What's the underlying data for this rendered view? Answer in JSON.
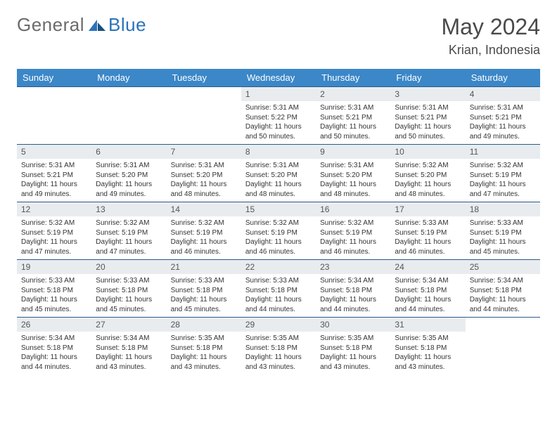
{
  "logo": {
    "general": "General",
    "blue": "Blue"
  },
  "title": "May 2024",
  "location": "Krian, Indonesia",
  "colors": {
    "header_bg": "#3b87c8",
    "header_text": "#ffffff",
    "daynum_bg": "#e9ecef",
    "row_border": "#2b5a8a",
    "logo_blue": "#2b72b9",
    "logo_gray": "#6b6b6b"
  },
  "weekdays": [
    "Sunday",
    "Monday",
    "Tuesday",
    "Wednesday",
    "Thursday",
    "Friday",
    "Saturday"
  ],
  "weeks": [
    [
      {
        "n": "",
        "sr": "",
        "ss": "",
        "dl": ""
      },
      {
        "n": "",
        "sr": "",
        "ss": "",
        "dl": ""
      },
      {
        "n": "",
        "sr": "",
        "ss": "",
        "dl": ""
      },
      {
        "n": "1",
        "sr": "Sunrise: 5:31 AM",
        "ss": "Sunset: 5:22 PM",
        "dl": "Daylight: 11 hours and 50 minutes."
      },
      {
        "n": "2",
        "sr": "Sunrise: 5:31 AM",
        "ss": "Sunset: 5:21 PM",
        "dl": "Daylight: 11 hours and 50 minutes."
      },
      {
        "n": "3",
        "sr": "Sunrise: 5:31 AM",
        "ss": "Sunset: 5:21 PM",
        "dl": "Daylight: 11 hours and 50 minutes."
      },
      {
        "n": "4",
        "sr": "Sunrise: 5:31 AM",
        "ss": "Sunset: 5:21 PM",
        "dl": "Daylight: 11 hours and 49 minutes."
      }
    ],
    [
      {
        "n": "5",
        "sr": "Sunrise: 5:31 AM",
        "ss": "Sunset: 5:21 PM",
        "dl": "Daylight: 11 hours and 49 minutes."
      },
      {
        "n": "6",
        "sr": "Sunrise: 5:31 AM",
        "ss": "Sunset: 5:20 PM",
        "dl": "Daylight: 11 hours and 49 minutes."
      },
      {
        "n": "7",
        "sr": "Sunrise: 5:31 AM",
        "ss": "Sunset: 5:20 PM",
        "dl": "Daylight: 11 hours and 48 minutes."
      },
      {
        "n": "8",
        "sr": "Sunrise: 5:31 AM",
        "ss": "Sunset: 5:20 PM",
        "dl": "Daylight: 11 hours and 48 minutes."
      },
      {
        "n": "9",
        "sr": "Sunrise: 5:31 AM",
        "ss": "Sunset: 5:20 PM",
        "dl": "Daylight: 11 hours and 48 minutes."
      },
      {
        "n": "10",
        "sr": "Sunrise: 5:32 AM",
        "ss": "Sunset: 5:20 PM",
        "dl": "Daylight: 11 hours and 48 minutes."
      },
      {
        "n": "11",
        "sr": "Sunrise: 5:32 AM",
        "ss": "Sunset: 5:19 PM",
        "dl": "Daylight: 11 hours and 47 minutes."
      }
    ],
    [
      {
        "n": "12",
        "sr": "Sunrise: 5:32 AM",
        "ss": "Sunset: 5:19 PM",
        "dl": "Daylight: 11 hours and 47 minutes."
      },
      {
        "n": "13",
        "sr": "Sunrise: 5:32 AM",
        "ss": "Sunset: 5:19 PM",
        "dl": "Daylight: 11 hours and 47 minutes."
      },
      {
        "n": "14",
        "sr": "Sunrise: 5:32 AM",
        "ss": "Sunset: 5:19 PM",
        "dl": "Daylight: 11 hours and 46 minutes."
      },
      {
        "n": "15",
        "sr": "Sunrise: 5:32 AM",
        "ss": "Sunset: 5:19 PM",
        "dl": "Daylight: 11 hours and 46 minutes."
      },
      {
        "n": "16",
        "sr": "Sunrise: 5:32 AM",
        "ss": "Sunset: 5:19 PM",
        "dl": "Daylight: 11 hours and 46 minutes."
      },
      {
        "n": "17",
        "sr": "Sunrise: 5:33 AM",
        "ss": "Sunset: 5:19 PM",
        "dl": "Daylight: 11 hours and 46 minutes."
      },
      {
        "n": "18",
        "sr": "Sunrise: 5:33 AM",
        "ss": "Sunset: 5:19 PM",
        "dl": "Daylight: 11 hours and 45 minutes."
      }
    ],
    [
      {
        "n": "19",
        "sr": "Sunrise: 5:33 AM",
        "ss": "Sunset: 5:18 PM",
        "dl": "Daylight: 11 hours and 45 minutes."
      },
      {
        "n": "20",
        "sr": "Sunrise: 5:33 AM",
        "ss": "Sunset: 5:18 PM",
        "dl": "Daylight: 11 hours and 45 minutes."
      },
      {
        "n": "21",
        "sr": "Sunrise: 5:33 AM",
        "ss": "Sunset: 5:18 PM",
        "dl": "Daylight: 11 hours and 45 minutes."
      },
      {
        "n": "22",
        "sr": "Sunrise: 5:33 AM",
        "ss": "Sunset: 5:18 PM",
        "dl": "Daylight: 11 hours and 44 minutes."
      },
      {
        "n": "23",
        "sr": "Sunrise: 5:34 AM",
        "ss": "Sunset: 5:18 PM",
        "dl": "Daylight: 11 hours and 44 minutes."
      },
      {
        "n": "24",
        "sr": "Sunrise: 5:34 AM",
        "ss": "Sunset: 5:18 PM",
        "dl": "Daylight: 11 hours and 44 minutes."
      },
      {
        "n": "25",
        "sr": "Sunrise: 5:34 AM",
        "ss": "Sunset: 5:18 PM",
        "dl": "Daylight: 11 hours and 44 minutes."
      }
    ],
    [
      {
        "n": "26",
        "sr": "Sunrise: 5:34 AM",
        "ss": "Sunset: 5:18 PM",
        "dl": "Daylight: 11 hours and 44 minutes."
      },
      {
        "n": "27",
        "sr": "Sunrise: 5:34 AM",
        "ss": "Sunset: 5:18 PM",
        "dl": "Daylight: 11 hours and 43 minutes."
      },
      {
        "n": "28",
        "sr": "Sunrise: 5:35 AM",
        "ss": "Sunset: 5:18 PM",
        "dl": "Daylight: 11 hours and 43 minutes."
      },
      {
        "n": "29",
        "sr": "Sunrise: 5:35 AM",
        "ss": "Sunset: 5:18 PM",
        "dl": "Daylight: 11 hours and 43 minutes."
      },
      {
        "n": "30",
        "sr": "Sunrise: 5:35 AM",
        "ss": "Sunset: 5:18 PM",
        "dl": "Daylight: 11 hours and 43 minutes."
      },
      {
        "n": "31",
        "sr": "Sunrise: 5:35 AM",
        "ss": "Sunset: 5:18 PM",
        "dl": "Daylight: 11 hours and 43 minutes."
      },
      {
        "n": "",
        "sr": "",
        "ss": "",
        "dl": ""
      }
    ]
  ]
}
